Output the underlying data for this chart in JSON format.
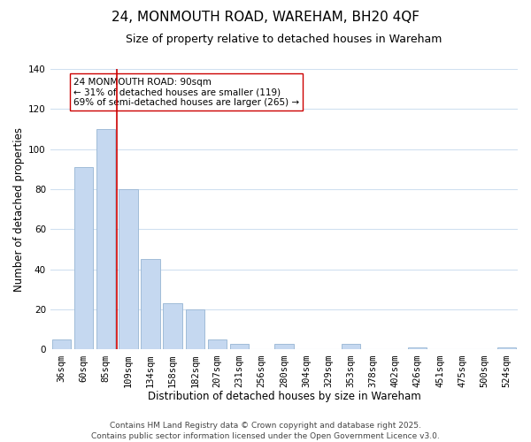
{
  "title": "24, MONMOUTH ROAD, WAREHAM, BH20 4QF",
  "subtitle": "Size of property relative to detached houses in Wareham",
  "xlabel": "Distribution of detached houses by size in Wareham",
  "ylabel": "Number of detached properties",
  "categories": [
    "36sqm",
    "60sqm",
    "85sqm",
    "109sqm",
    "134sqm",
    "158sqm",
    "182sqm",
    "207sqm",
    "231sqm",
    "256sqm",
    "280sqm",
    "304sqm",
    "329sqm",
    "353sqm",
    "378sqm",
    "402sqm",
    "426sqm",
    "451sqm",
    "475sqm",
    "500sqm",
    "524sqm"
  ],
  "values": [
    5,
    91,
    110,
    80,
    45,
    23,
    20,
    5,
    3,
    0,
    3,
    0,
    0,
    3,
    0,
    0,
    1,
    0,
    0,
    0,
    1
  ],
  "bar_color": "#c5d8f0",
  "bar_edge_color": "#a0bcd8",
  "vline_color": "#cc0000",
  "vline_xindex": 2.5,
  "ylim": [
    0,
    140
  ],
  "yticks": [
    0,
    20,
    40,
    60,
    80,
    100,
    120,
    140
  ],
  "annotation_title": "24 MONMOUTH ROAD: 90sqm",
  "annotation_line1": "← 31% of detached houses are smaller (119)",
  "annotation_line2": "69% of semi-detached houses are larger (265) →",
  "annotation_box_facecolor": "#ffffff",
  "annotation_box_edgecolor": "#cc0000",
  "footer1": "Contains HM Land Registry data © Crown copyright and database right 2025.",
  "footer2": "Contains public sector information licensed under the Open Government Licence v3.0.",
  "background_color": "#ffffff",
  "grid_color": "#d0e0f0",
  "title_fontsize": 11,
  "subtitle_fontsize": 9,
  "xlabel_fontsize": 8.5,
  "ylabel_fontsize": 8.5,
  "tick_fontsize": 7.5,
  "annotation_fontsize": 7.5,
  "footer_fontsize": 6.5
}
